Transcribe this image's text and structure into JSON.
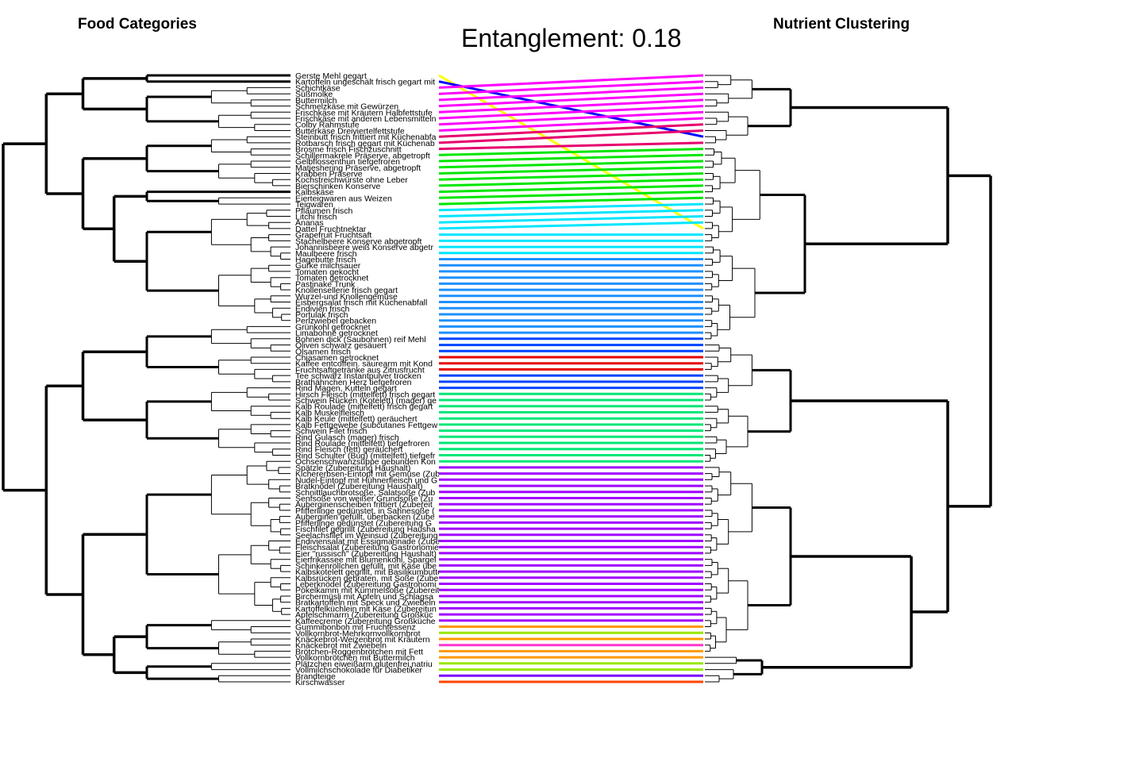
{
  "left_title": "Food Categories",
  "right_title": "Nutrient Clustering",
  "main_title": "Entanglement: 0.18",
  "entanglement": 0.18,
  "left_labels": [
    "Gerste Mehl gegart",
    "Kartoffeln ungeschält frisch gegart mit",
    "Schichtkäse",
    "Süßmolke",
    "Buttermilch",
    "Schmelzkäse mit Gewürzen",
    "Frischkäse mit Kräutern Halbfettstufe",
    "Frischkäse mit anderen Lebensmitteln",
    "Colby Rahmstufe",
    "Butterkäse Dreiviertelfettstufe",
    "Steinbutt frisch frittiert mit Küchenabfa",
    "Rotbarsch frisch gegart mit Küchenab",
    "Brosme frisch Fischzuschnitt",
    "Schillermakrele Präserve, abgetropft",
    "Gelbflossenthun tiefgefroren",
    "Matjeshering Präserve, abgetropft",
    "Krabben Präserve",
    "Kochstreichwürste ohne Leber",
    "Bierschinken Konserve",
    "Kalbskäse",
    "Eierteigwaren aus Weizen",
    "Teigwaren",
    "Pflaumen frisch",
    "Litchi frisch",
    "Ananas",
    "Dattel Fruchtnektar",
    "Grapefruit Fruchtsaft",
    "Stachelbeere Konserve abgetropft",
    "Johannisbeere weiß Konserve abgetr",
    "Maulbeere frisch",
    "Hagebutte frisch",
    "Gurke milchsauer",
    "Tomaten gekocht",
    "Tomaten getrocknet",
    "Pastinake Trunk",
    "Knollensellerie frisch gegart",
    "Wurzel-und Knollengemüse",
    "Eisbergsalat frisch mit Küchenabfall",
    "Endivien frisch",
    "Portulak frisch",
    "Perlzwiebel gebacken",
    "Grünkohl getrocknet",
    "Limabohne getrocknet",
    "Bohnen dick (Saubohnen) reif Mehl",
    "Oliven schwarz gesäuert",
    "Ölsamen frisch",
    "Chiasamen getrocknet",
    "Kaffee entcoffein. säurearm mit Kond",
    "Fruchtsaftgetränke aus Zitrusfrucht",
    "Tee schwarz Instantpulver trocken",
    "Brathähnchen Herz tiefgefroren",
    "Rind Magen, Kutteln gegart",
    "Hirsch Fleisch (mittelfett) frisch gegart",
    "Schwein Rücken (Kotelett) (mager) ge",
    "Kalb Roulade (mittelfett) frisch gegart",
    "Kalb Muskelfleisch",
    "Kalb Keule (mittelfett) geräuchert",
    "Kalb Fettgewebe (subcutanes Fettgew",
    "Schwein Filet frisch",
    "Rind Gulasch (mager) frisch",
    "Rind Roulade (mittelfett) tiefgefroren",
    "Rind Fleisch (fett) geräuchert",
    "Rind Schulter (Bug) (mittelfett) tiefgefr",
    "Ochsenschwanzsuppe gebunden Kon",
    "Spätzle (Zubereitung Haushalt)",
    "Kichererbsen-Eintopf mit Gemüse (Zub",
    "Nudel-Eintopf mit Hühnerfleisch und G",
    "Bratknödel (Zubereitung Haushalt)",
    "Schnittlauchbrotsoße, Salatsoße (Zub",
    "Senfsoße von weißer Grundsoße (Zu",
    "Auberginenscheiben frittiert (Zubereit",
    "Pfifferlinge gedünstet, in Sahnesoße (",
    "Auberginen gefüllt, überbacken (Zube",
    "Pfifferlinge gedünstet (Zubereitung G",
    "Fischfilet gegrillt (Zubereitung Hausha",
    "Seelachsfilet im Weinsud (Zubereitung",
    "Endiviensalat mit Essigmarinade (Zube",
    "Fleischsalat (Zubereitung Gastronomie",
    "Eier \"russisch\" (Zubereitung Haushalt)",
    "Eierfrikassee mit Blumenkohl, Spargel",
    "Schinkenröllchen gefüllt, mit Käse übe",
    "Kalbskotelett gegrillt, mit Basilikumbutte",
    "Kalbsrücken gebraten, mit Soße (Zube",
    "Leberknödel (Zubereitung Gastronomi",
    "Pökelkamm mit Kümmelsoße (Zubereit",
    "Birchermüsli mit Äpfeln und Schlagsa",
    "Bratkartoffeln mit Speck und Zwiebeln",
    "Kartoffelküchlein mit Käse (Zubereitun",
    "Apfelschmarrn (Zubereitung Großküc",
    "Kaffeecreme (Zubereitung Großküche",
    "Gummibonbon mit Fruchtessenz",
    "Vollkornbrot-Mehrkornvollkornbrot",
    "Knäckebrot-Weizenbrot mit Kräutern",
    "Knäckebrot mit Zwiebeln",
    "Brötchen-Roggenbrötchen mit Fett",
    "Vollkornbrötchen mit Buttermilch",
    "Plätzchen eiweißarm,glutenfrei,natriu",
    "Vollmilchschokolade für Diabetiker",
    "Brandteige",
    "Kirschwasser"
  ],
  "link_colors": [
    "#FFFF00",
    "#0000FF",
    "#FF00FF",
    "#FF00FF",
    "#FF00FF",
    "#FF00FF",
    "#FF00FF",
    "#FF00FF",
    "#FF00FF",
    "#FF00FF",
    "#E6006E",
    "#E6006E",
    "#E6006E",
    "#00E600",
    "#00E600",
    "#00E600",
    "#00E600",
    "#00E600",
    "#00E600",
    "#00E600",
    "#00E600",
    "#00E600",
    "#00E5FF",
    "#00E5FF",
    "#00E5FF",
    "#00E5FF",
    "#00E5FF",
    "#00E5FF",
    "#00E5FF",
    "#00E5FF",
    "#1E90FF",
    "#1E90FF",
    "#1E90FF",
    "#1E90FF",
    "#1E90FF",
    "#1E90FF",
    "#1E90FF",
    "#1E90FF",
    "#1E90FF",
    "#1E90FF",
    "#1E90FF",
    "#1E90FF",
    "#1E90FF",
    "#0044FF",
    "#0044FF",
    "#0044FF",
    "#E60000",
    "#E60000",
    "#E60000",
    "#0044FF",
    "#0044FF",
    "#0044FF",
    "#00E676",
    "#00E676",
    "#00E676",
    "#00E676",
    "#00E676",
    "#00E676",
    "#00E676",
    "#00E676",
    "#00E676",
    "#00E676",
    "#00E676",
    "#00E676",
    "#A000FF",
    "#A000FF",
    "#A000FF",
    "#A000FF",
    "#A000FF",
    "#A000FF",
    "#A000FF",
    "#A000FF",
    "#A000FF",
    "#A000FF",
    "#A000FF",
    "#A000FF",
    "#A000FF",
    "#A000FF",
    "#A000FF",
    "#A000FF",
    "#A000FF",
    "#A000FF",
    "#A000FF",
    "#A000FF",
    "#A000FF",
    "#A000FF",
    "#A000FF",
    "#A000FF",
    "#A000FF",
    "#A000FF",
    "#FF9900",
    "#99E600",
    "#FF9900",
    "#FF33CC",
    "#FF9900",
    "#FF9900",
    "#99E600",
    "#99E600",
    "#7A00FF",
    "#FF4400"
  ],
  "link_right_positions": [
    25,
    10,
    0,
    1,
    2,
    3,
    4,
    5,
    6,
    7,
    8,
    9,
    11,
    12,
    13,
    14,
    15,
    16,
    17,
    18,
    19,
    20,
    21,
    22,
    23,
    24,
    26,
    27,
    28,
    29,
    30,
    31,
    32,
    33,
    34,
    35,
    36,
    37,
    38,
    39,
    40,
    41,
    42,
    43,
    44,
    45,
    46,
    47,
    48,
    49,
    50,
    51,
    52,
    53,
    54,
    55,
    56,
    57,
    58,
    59,
    60,
    61,
    62,
    63,
    64,
    65,
    66,
    67,
    68,
    69,
    70,
    71,
    72,
    73,
    74,
    75,
    76,
    77,
    78,
    79,
    80,
    81,
    82,
    83,
    84,
    85,
    86,
    87,
    88,
    89,
    90,
    91,
    92,
    93,
    94,
    95,
    96,
    97,
    98,
    99
  ]
}
